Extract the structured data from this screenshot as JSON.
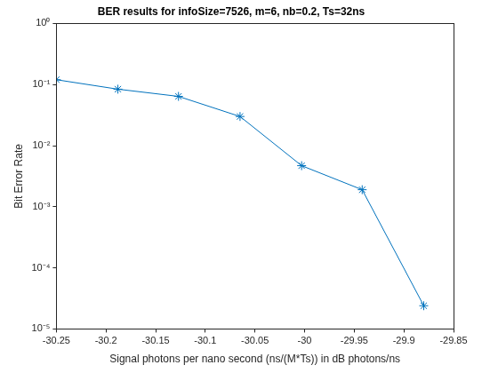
{
  "chart_data": {
    "type": "line",
    "title": "BER results for infoSize=7526, m=6, nb=0.2, Ts=32ns",
    "x_label": "Signal photons per nano second (ns/(M*Ts)) in dB photons/ns",
    "y_label": "Bit Error Rate",
    "x": [
      -30.25,
      -30.188,
      -30.127,
      -30.065,
      -30.003,
      -29.942,
      -29.88
    ],
    "series": [
      {
        "name": "BER",
        "color": "#0072bd",
        "marker": "star",
        "line_style": "solid",
        "values": [
          0.12,
          0.084,
          0.064,
          0.03,
          0.0047,
          0.0019,
          2.4e-05
        ]
      }
    ],
    "xlim": [
      -30.25,
      -29.85
    ],
    "xticks": [
      -30.25,
      -30.2,
      -30.15,
      -30.1,
      -30.05,
      -30,
      -29.95,
      -29.9,
      -29.85
    ],
    "ylim": [
      1e-05,
      1
    ],
    "yticks": [
      {
        "value": 1e-05,
        "label": "10⁻⁵"
      },
      {
        "value": 0.0001,
        "label": "10⁻⁴"
      },
      {
        "value": 0.001,
        "label": "10⁻³"
      },
      {
        "value": 0.01,
        "label": "10⁻²"
      },
      {
        "value": 0.1,
        "label": "10⁻¹"
      },
      {
        "value": 1,
        "label": "10⁰"
      }
    ],
    "log": "y",
    "grid": false
  }
}
